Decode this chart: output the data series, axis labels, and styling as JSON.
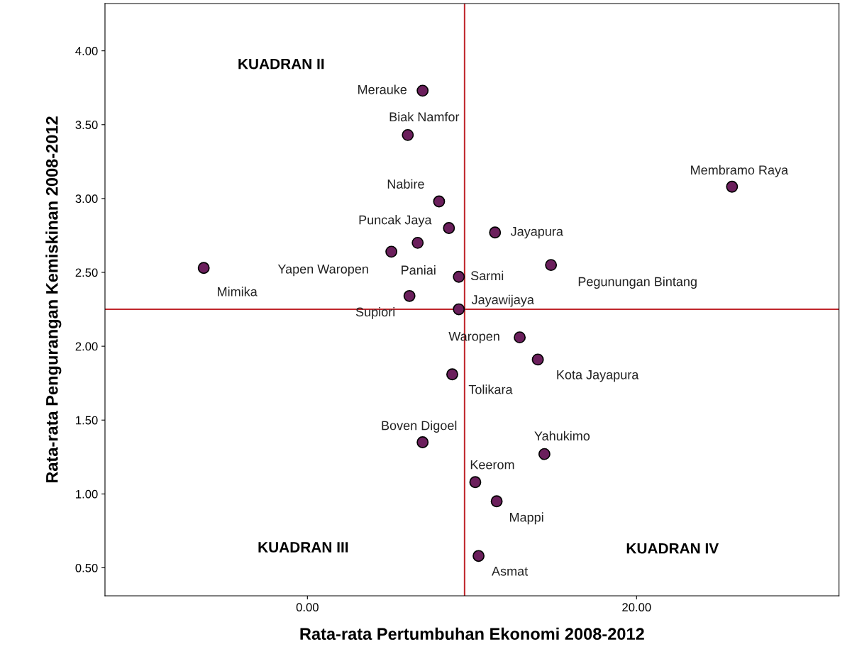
{
  "chart_data": {
    "type": "scatter",
    "xlabel": "Rata-rata Pertumbuhan Ekonomi 2008-2012",
    "ylabel": "Rata-rata Pengurangan Kemiskinan 2008-2012",
    "x": [
      7.0,
      6.1,
      8.0,
      8.6,
      11.4,
      25.8,
      5.1,
      6.7,
      -6.3,
      9.2,
      14.8,
      6.2,
      9.2,
      12.9,
      14.0,
      8.8,
      7.0,
      14.4,
      10.2,
      11.5,
      10.4
    ],
    "series": [
      {
        "color": "#6b1f5c",
        "values": [
          3.73,
          3.43,
          2.98,
          2.8,
          2.77,
          3.08,
          2.64,
          2.7,
          2.53,
          2.47,
          2.55,
          2.34,
          2.25,
          2.06,
          1.91,
          1.81,
          1.35,
          1.27,
          1.08,
          0.95,
          0.58
        ]
      }
    ],
    "marker": "circle",
    "xlim": [
      -12.3,
      32.3
    ],
    "ylim": [
      0.31,
      4.32
    ],
    "xticks": [
      {
        "value": 0,
        "label": "0.00"
      },
      {
        "value": 20,
        "label": "20.00"
      }
    ],
    "yticks": [
      {
        "value": 0.5,
        "label": "0.50"
      },
      {
        "value": 1.0,
        "label": "1.00"
      },
      {
        "value": 1.5,
        "label": "1.50"
      },
      {
        "value": 2.0,
        "label": "2.00"
      },
      {
        "value": 2.5,
        "label": "2.50"
      },
      {
        "value": 3.0,
        "label": "3.00"
      },
      {
        "value": 3.5,
        "label": "3.50"
      },
      {
        "value": 4.0,
        "label": "4.00"
      }
    ],
    "grid": false,
    "ref_lines": [
      {
        "axis": "x",
        "value": 9.55,
        "color": "#c0272d"
      },
      {
        "axis": "y",
        "value": 2.25,
        "color": "#c0272d"
      }
    ],
    "annotations": [
      {
        "text": "Merauke",
        "x": 7.0,
        "y": 3.73
      },
      {
        "text": "Biak Namfor",
        "x": 6.1,
        "y": 3.43
      },
      {
        "text": "Nabire",
        "x": 8.0,
        "y": 2.98
      },
      {
        "text": "Puncak Jaya",
        "x": 8.6,
        "y": 2.8
      },
      {
        "text": "Jayapura",
        "x": 11.4,
        "y": 2.77
      },
      {
        "text": "Membramo Raya",
        "x": 25.8,
        "y": 3.08
      },
      {
        "text": "Yapen Waropen",
        "x": 5.1,
        "y": 2.64
      },
      {
        "text": "Paniai",
        "x": 6.7,
        "y": 2.7
      },
      {
        "text": "Mimika",
        "x": -6.3,
        "y": 2.53
      },
      {
        "text": "Sarmi",
        "x": 9.2,
        "y": 2.47
      },
      {
        "text": "Pegunungan Bintang",
        "x": 14.8,
        "y": 2.55
      },
      {
        "text": "Supiori",
        "x": 6.2,
        "y": 2.34
      },
      {
        "text": "Jayawijaya",
        "x": 9.2,
        "y": 2.25
      },
      {
        "text": "Waropen",
        "x": 12.9,
        "y": 2.06
      },
      {
        "text": "Kota Jayapura",
        "x": 14.0,
        "y": 1.91
      },
      {
        "text": "Tolikara",
        "x": 8.8,
        "y": 1.81
      },
      {
        "text": "Boven Digoel",
        "x": 7.0,
        "y": 1.35
      },
      {
        "text": "Yahukimo",
        "x": 14.4,
        "y": 1.27
      },
      {
        "text": "Keerom",
        "x": 10.2,
        "y": 1.08
      },
      {
        "text": "Mappi",
        "x": 11.5,
        "y": 0.95
      },
      {
        "text": "Asmat",
        "x": 10.4,
        "y": 0.58
      },
      "KUADRAN II",
      "KUADRAN III",
      "KUADRAN IV"
    ]
  }
}
